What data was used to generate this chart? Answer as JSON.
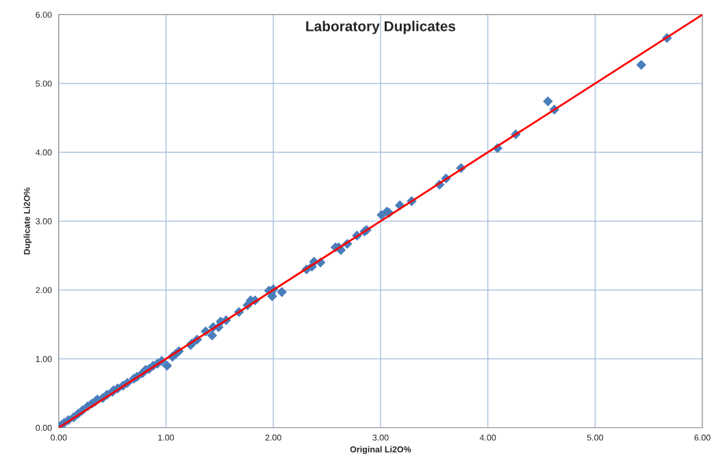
{
  "chart_data": {
    "type": "scatter",
    "title": "Laboratory Duplicates",
    "xlabel": "Original Li2O%",
    "ylabel": "Duplicate Li2O%",
    "series": [
      {
        "color": "#4a7ebb",
        "marker": "diamond",
        "x": [
          5.67,
          5.43,
          4.56,
          4.62,
          4.26,
          4.09,
          3.75,
          3.61,
          3.55,
          3.29,
          3.18,
          3.08,
          3.01,
          3.06,
          2.87,
          2.85,
          2.78,
          2.69,
          2.63,
          2.61,
          2.58,
          2.44,
          2.38,
          2.36,
          2.31,
          2.08,
          2.0,
          1.98,
          1.99,
          1.96,
          1.83,
          1.79,
          1.76,
          1.68,
          1.56,
          1.51,
          1.43,
          1.49,
          1.44,
          1.37,
          1.29,
          1.24,
          1.23,
          1.12,
          1.09,
          1.06,
          1.01,
          0.96,
          0.92,
          0.88,
          0.84,
          0.81,
          0.78,
          0.73,
          0.7,
          0.64,
          0.6,
          0.55,
          0.51,
          0.5,
          0.45,
          0.41,
          0.36,
          0.34,
          0.31,
          0.27,
          0.22,
          0.18,
          0.14,
          0.09,
          0.05,
          0.03,
          0.01
        ],
        "values": [
          5.66,
          5.27,
          4.74,
          4.62,
          4.26,
          4.06,
          3.77,
          3.62,
          3.53,
          3.29,
          3.23,
          3.12,
          3.09,
          3.14,
          2.87,
          2.85,
          2.79,
          2.67,
          2.58,
          2.62,
          2.62,
          2.4,
          2.41,
          2.34,
          2.3,
          1.97,
          2.01,
          1.96,
          1.91,
          1.99,
          1.85,
          1.85,
          1.78,
          1.68,
          1.56,
          1.54,
          1.34,
          1.46,
          1.46,
          1.4,
          1.28,
          1.22,
          1.2,
          1.11,
          1.07,
          1.03,
          0.9,
          0.97,
          0.93,
          0.9,
          0.85,
          0.84,
          0.79,
          0.74,
          0.71,
          0.65,
          0.61,
          0.57,
          0.54,
          0.52,
          0.48,
          0.43,
          0.41,
          0.38,
          0.35,
          0.31,
          0.25,
          0.2,
          0.15,
          0.11,
          0.07,
          0.04,
          0.02
        ]
      },
      {
        "type": "line",
        "color": "#ff0000",
        "marker": "none",
        "line_style": "solid",
        "x": [
          0,
          6
        ],
        "values": [
          0,
          6
        ]
      }
    ],
    "xlim": [
      0,
      6
    ],
    "ylim": [
      0,
      6
    ],
    "xticks": [
      {
        "value": 0,
        "label": "0.00"
      },
      {
        "value": 1,
        "label": "1.00"
      },
      {
        "value": 2,
        "label": "2.00"
      },
      {
        "value": 3,
        "label": "3.00"
      },
      {
        "value": 4,
        "label": "4.00"
      },
      {
        "value": 5,
        "label": "5.00"
      },
      {
        "value": 6,
        "label": "6.00"
      }
    ],
    "yticks": [
      {
        "value": 0,
        "label": "0.00"
      },
      {
        "value": 1,
        "label": "1.00"
      },
      {
        "value": 2,
        "label": "2.00"
      },
      {
        "value": 3,
        "label": "3.00"
      },
      {
        "value": 4,
        "label": "4.00"
      },
      {
        "value": 5,
        "label": "5.00"
      },
      {
        "value": 6,
        "label": "6.00"
      }
    ],
    "grid": true,
    "legend": false
  }
}
